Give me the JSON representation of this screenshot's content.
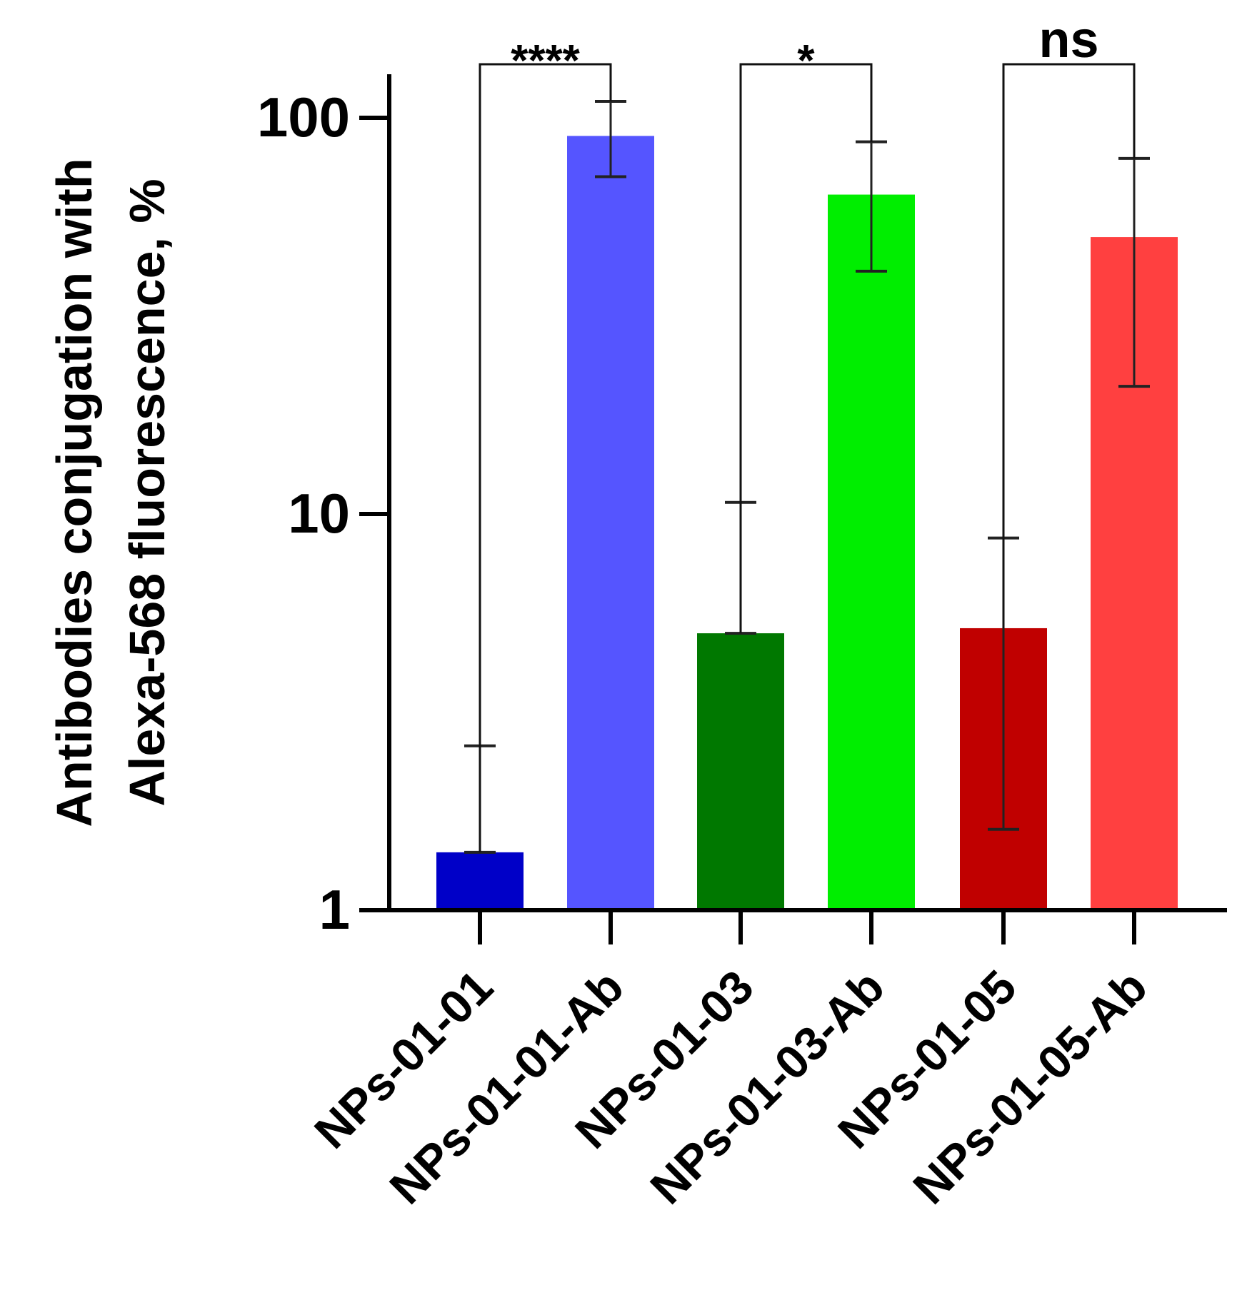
{
  "chart_data": {
    "type": "bar",
    "yscale": "log",
    "ylim": [
      1,
      100
    ],
    "ylabel_line1": "Antibodies conjugation with",
    "ylabel_line2": "Alexa-568 fluorescence, %",
    "yticks": [
      {
        "value": 1,
        "label": "1"
      },
      {
        "value": 10,
        "label": "10"
      },
      {
        "value": 100,
        "label": "100"
      }
    ],
    "categories": [
      "NPs-01-01",
      "NPs-01-01-Ab",
      "NPs-01-03",
      "NPs-01-03-Ab",
      "NPs-01-05",
      "NPs-01-05-Ab"
    ],
    "values": [
      1.4,
      90,
      5.0,
      64,
      5.15,
      50
    ],
    "error_upper": [
      2.6,
      110,
      10.7,
      87,
      8.7,
      79
    ],
    "error_lower": [
      1.4,
      71,
      5.0,
      41,
      1.6,
      21
    ],
    "colors": [
      "#0000c8",
      "#5555ff",
      "#007800",
      "#00ee00",
      "#c00000",
      "#ff4040"
    ],
    "significance": [
      {
        "from": 0,
        "to": 1,
        "label": "****"
      },
      {
        "from": 2,
        "to": 3,
        "label": "*"
      },
      {
        "from": 4,
        "to": 5,
        "label": "ns"
      }
    ]
  }
}
